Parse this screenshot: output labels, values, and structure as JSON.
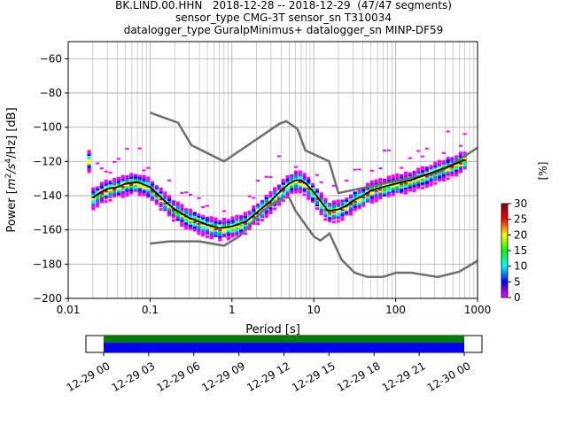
{
  "title_lines": [
    "BK.LIND.00.HHN   2018-12-28 -- 2018-12-29  (47/47 segments)",
    "sensor_type CMG-3T sensor_sn T310034",
    "datalogger_type GuralpMinimus+ datalogger_sn MINP-DF59"
  ],
  "chart_data": {
    "type": "heatmap",
    "xlabel": "Period [s]",
    "ylabel_parts": [
      "Power [",
      "m",
      "2",
      "/s",
      "4",
      "/Hz] [dB]"
    ],
    "xscale": "log",
    "xlim": [
      0.01,
      1000
    ],
    "ylim": [
      -200,
      -50
    ],
    "x_ticks": [
      0.01,
      0.1,
      1,
      10,
      100,
      1000
    ],
    "x_tick_labels": [
      "0.01",
      "0.1",
      "1",
      "10",
      "100",
      "1000"
    ],
    "y_ticks": [
      -200,
      -180,
      -160,
      -140,
      -120,
      -100,
      -80,
      -60
    ],
    "y_tick_labels": [
      "−200",
      "−180",
      "−160",
      "−140",
      "−120",
      "−100",
      "−80",
      "−60"
    ],
    "grid": true,
    "colorbar": {
      "label": "[%]",
      "min": 0,
      "max": 30,
      "ticks": [
        0,
        5,
        10,
        15,
        20,
        25,
        30
      ],
      "tick_labels": [
        "0",
        "5",
        "10",
        "15",
        "20",
        "25",
        "30"
      ],
      "colors": [
        "#ffffff",
        "#ff00ff",
        "#0000ff",
        "#00ffff",
        "#00ff00",
        "#ffff00",
        "#ff0000",
        "#800000"
      ]
    },
    "mode_curve": {
      "x": [
        0.02,
        0.025,
        0.03,
        0.04,
        0.05,
        0.07,
        0.1,
        0.15,
        0.2,
        0.3,
        0.5,
        0.7,
        1.0,
        1.5,
        2.0,
        3.0,
        4.0,
        5.0,
        6.0,
        7.0,
        8.0,
        10.0,
        12.0,
        15.0,
        20.0,
        25.0,
        30.0,
        40.0,
        50.0,
        70.0,
        100.0,
        150.0,
        200.0,
        300.0,
        500.0,
        700.0
      ],
      "y": [
        -141,
        -138,
        -136,
        -135,
        -133,
        -132,
        -135,
        -143,
        -148,
        -153,
        -157,
        -159,
        -158,
        -155,
        -150,
        -143,
        -137,
        -133,
        -131,
        -131,
        -133,
        -138,
        -143,
        -149,
        -148,
        -146,
        -143,
        -140,
        -137,
        -135,
        -133,
        -131,
        -129,
        -126,
        -122,
        -119
      ]
    },
    "nhnm": {
      "x": [
        0.1,
        0.22,
        0.32,
        0.8,
        3.8,
        4.6,
        6.3,
        7.9,
        15.4,
        20,
        354.8,
        1000
      ],
      "y": [
        -91.5,
        -97.4,
        -110.5,
        -120,
        -98,
        -96.5,
        -101,
        -113.5,
        -120,
        -138.5,
        -126,
        -112
      ]
    },
    "nlnm": {
      "x": [
        0.1,
        0.17,
        0.4,
        0.8,
        1.24,
        2.4,
        4.3,
        5.0,
        6.0,
        10.0,
        12.0,
        15.6,
        21.9,
        31.6,
        45.0,
        70.0,
        101.0,
        154.0,
        328.0,
        600.0,
        1000.0
      ],
      "y": [
        -168,
        -166.7,
        -166.7,
        -169.2,
        -163.7,
        -148.6,
        -141.1,
        -141.1,
        -149,
        -163.8,
        -166.2,
        -162.1,
        -177.5,
        -185,
        -187.5,
        -187.5,
        -185,
        -185,
        -187.5,
        -184.4,
        -178
      ]
    },
    "coverage": {
      "tick_labels": [
        "12-29 00",
        "12-29 03",
        "12-29 06",
        "12-29 09",
        "12-29 12",
        "12-29 15",
        "12-29 18",
        "12-29 21",
        "12-30 00"
      ],
      "bars": [
        "green",
        "blue"
      ],
      "bar_colors": [
        "#008000",
        "#0000ff"
      ]
    }
  }
}
